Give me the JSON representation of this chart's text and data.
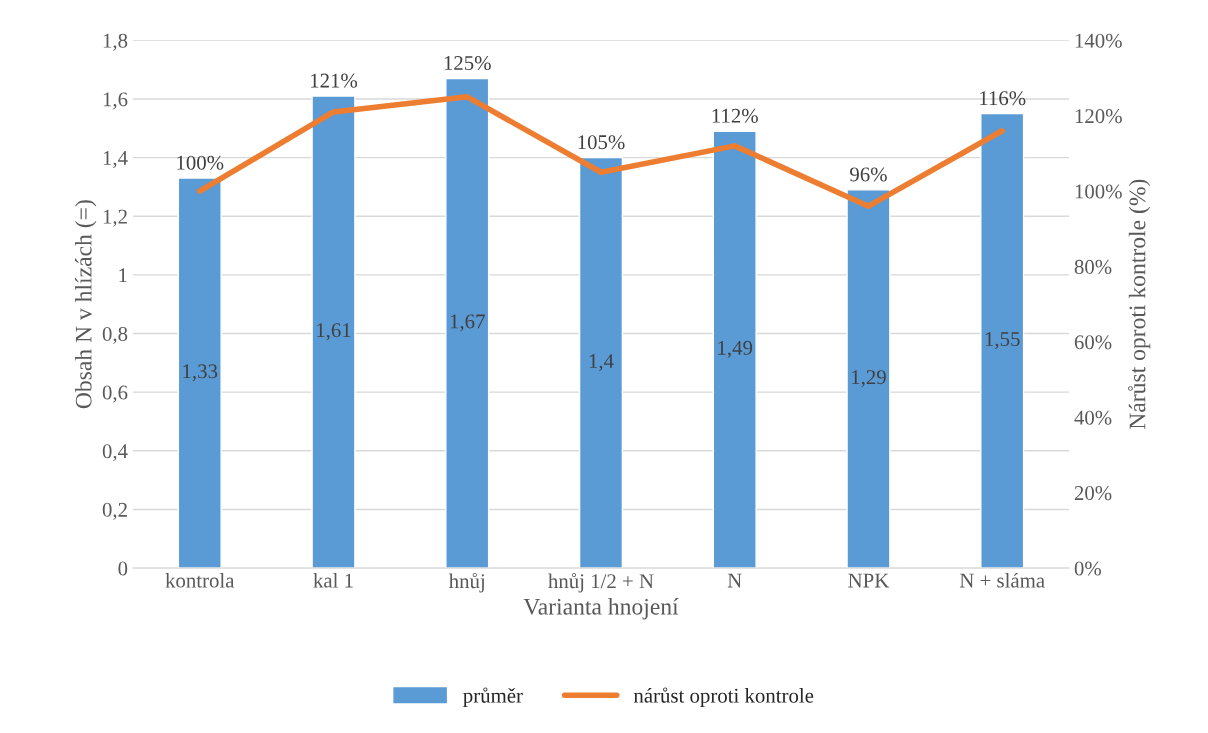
{
  "chart_data": {
    "type": "bar",
    "xlabel": "Varianta hnojení",
    "ylabel": "Obsah N v hlízách (=)",
    "y2label": "Nárůst oproti kontrole (%)",
    "categories": [
      "kontrola",
      "kal 1",
      "hnůj",
      "hnůj 1/2 + N",
      "N",
      "NPK",
      "N + sláma"
    ],
    "series": [
      {
        "name": "průměr",
        "color": "#5b9bd5",
        "values": [
          1.33,
          1.61,
          1.67,
          1.4,
          1.49,
          1.29,
          1.55
        ],
        "value_labels": [
          "1,33",
          "1,61",
          "1,67",
          "1,4",
          "1,49",
          "1,29",
          "1,55"
        ]
      },
      {
        "name": "nárůst oproti kontrole",
        "type": "line",
        "axis": "y2",
        "color": "#ed7d31",
        "values": [
          100,
          121,
          125,
          105,
          112,
          96,
          116
        ],
        "value_labels": [
          "100%",
          "121%",
          "125%",
          "105%",
          "112%",
          "96%",
          "116%"
        ]
      }
    ],
    "ylim": [
      0,
      1.8
    ],
    "yticks": [
      0,
      {
        "value": 0.2,
        "label": "0,2"
      },
      {
        "value": 0.4,
        "label": "0,4"
      },
      {
        "value": 0.6,
        "label": "0,6"
      },
      {
        "value": 0.8,
        "label": "0,8"
      },
      1,
      {
        "value": 1.2,
        "label": "1,2"
      },
      {
        "value": 1.4,
        "label": "1,4"
      },
      {
        "value": 1.6,
        "label": "1,6"
      },
      {
        "value": 1.8,
        "label": "1,8"
      }
    ],
    "y2lim": [
      0,
      140
    ],
    "y2ticks": [
      {
        "value": 0,
        "label": "0%"
      },
      {
        "value": 20,
        "label": "20%"
      },
      {
        "value": 40,
        "label": "40%"
      },
      {
        "value": 60,
        "label": "60%"
      },
      {
        "value": 80,
        "label": "80%"
      },
      {
        "value": 100,
        "label": "100%"
      },
      {
        "value": 120,
        "label": "120%"
      },
      {
        "value": 140,
        "label": "140%"
      }
    ],
    "grid": "y",
    "legend": "bottom",
    "marker": "none",
    "line_style": "solid"
  }
}
